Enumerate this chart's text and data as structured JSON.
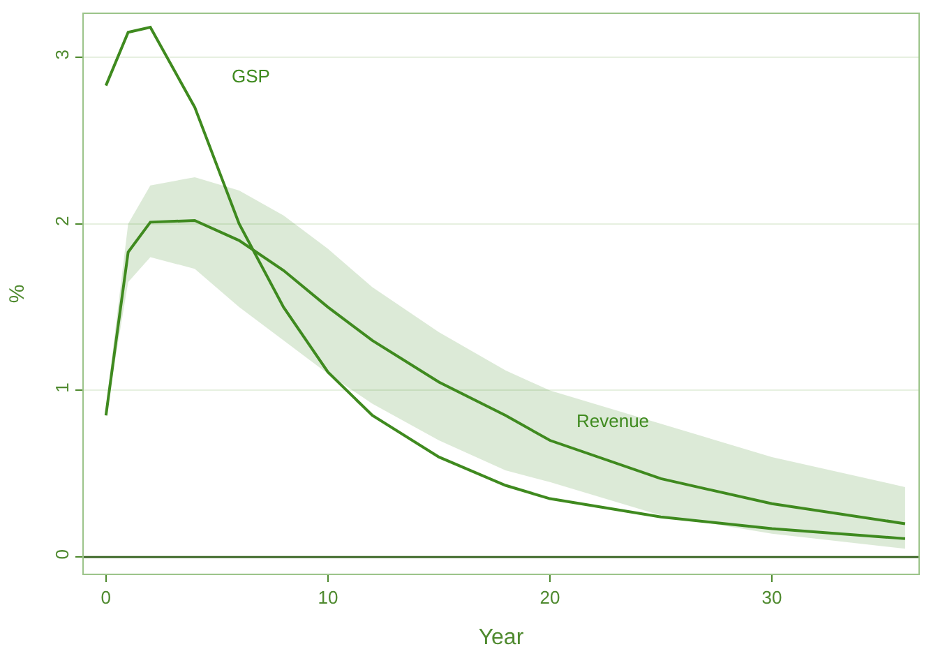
{
  "chart_data": {
    "type": "line",
    "xlabel": "Year",
    "ylabel": "%",
    "x": [
      0,
      1,
      2,
      4,
      6,
      8,
      10,
      12,
      15,
      18,
      20,
      25,
      30,
      36
    ],
    "series": [
      {
        "name": "GSP",
        "color": "#3f8a1f",
        "values": [
          2.83,
          3.15,
          3.18,
          2.7,
          2.0,
          1.5,
          1.11,
          0.85,
          0.6,
          0.43,
          0.35,
          0.24,
          0.17,
          0.11
        ]
      },
      {
        "name": "Revenue",
        "color": "#3f8a1f",
        "values": [
          0.85,
          1.83,
          2.01,
          2.02,
          1.9,
          1.72,
          1.5,
          1.3,
          1.05,
          0.85,
          0.7,
          0.47,
          0.32,
          0.2
        ],
        "lower": [
          0.85,
          1.65,
          1.8,
          1.73,
          1.5,
          1.3,
          1.1,
          0.92,
          0.7,
          0.52,
          0.45,
          0.25,
          0.14,
          0.05
        ],
        "upper": [
          0.9,
          2.0,
          2.23,
          2.28,
          2.2,
          2.05,
          1.85,
          1.62,
          1.35,
          1.12,
          1.0,
          0.8,
          0.6,
          0.42
        ]
      }
    ],
    "xlim": [
      -1,
      36.6
    ],
    "ylim": [
      -0.1,
      3.26
    ],
    "xticks": [
      0,
      10,
      20,
      30
    ],
    "yticks": [
      0,
      1,
      2,
      3
    ],
    "ref_lines": [
      {
        "axis": "y",
        "value": 0,
        "color": "#3f6a2a"
      }
    ],
    "grid": "y",
    "legend": false,
    "marker": "none",
    "line_style": "solid"
  }
}
